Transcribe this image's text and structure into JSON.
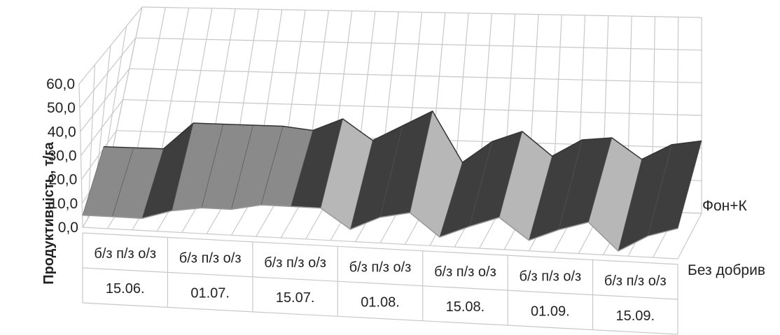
{
  "chart_data": {
    "type": "surface-3d",
    "ylabel": "Продуктивність, т/га",
    "ylim": [
      0,
      60
    ],
    "yticks": [
      "0,0",
      "10,0",
      "20,0",
      "30,0",
      "40,0",
      "50,0",
      "60,0"
    ],
    "grid": true,
    "depth_series": [
      "Без добрив",
      "Фон+К"
    ],
    "groups": [
      "15.06.",
      "01.07.",
      "15.07.",
      "01.08.",
      "15.08.",
      "01.09.",
      "15.09."
    ],
    "subcategories": [
      "б/з",
      "п/з",
      "о/з"
    ],
    "series": [
      {
        "name": "Без добрив",
        "values": [
          8,
          8,
          8,
          14,
          17,
          17,
          21,
          21,
          21,
          8,
          17,
          21,
          6,
          14,
          21,
          7,
          15,
          21,
          3,
          14,
          20
        ]
      },
      {
        "name": "Фон+К",
        "values": [
          29,
          29,
          29,
          46,
          46,
          46,
          46,
          44,
          52,
          39,
          49,
          59,
          27,
          41,
          48,
          33,
          44,
          46,
          33,
          43,
          46
        ]
      }
    ],
    "colors": {
      "surface_light": "#b7b7b7",
      "surface_mid": "#8a8a8a",
      "surface_dark": "#3e3e3e",
      "grid": "#c8c8c8"
    }
  }
}
